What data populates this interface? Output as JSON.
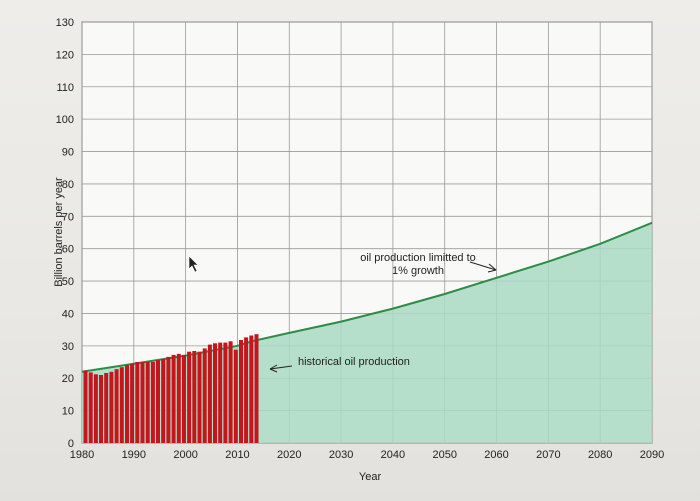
{
  "chart_data": {
    "type": "area",
    "ylabel": "Billion barrels per year",
    "xlabel": "Year",
    "xlim": [
      1980,
      2090
    ],
    "ylim": [
      0,
      130
    ],
    "x_ticks": [
      1980,
      1990,
      2000,
      2010,
      2020,
      2030,
      2040,
      2050,
      2060,
      2070,
      2080,
      2090
    ],
    "y_ticks": [
      0,
      10,
      20,
      30,
      40,
      50,
      60,
      70,
      80,
      90,
      100,
      110,
      120,
      130
    ],
    "grid": true,
    "historical": {
      "type": "bar",
      "color": "#c4161c",
      "x": [
        1980,
        1981,
        1982,
        1983,
        1984,
        1985,
        1986,
        1987,
        1988,
        1989,
        1990,
        1991,
        1992,
        1993,
        1994,
        1995,
        1996,
        1997,
        1998,
        1999,
        2000,
        2001,
        2002,
        2003,
        2004,
        2005,
        2006,
        2007,
        2008,
        2009,
        2010,
        2011,
        2012,
        2013
      ],
      "values": [
        22.4,
        21.8,
        21.2,
        21.0,
        21.6,
        22.0,
        22.8,
        23.4,
        24.0,
        24.5,
        25.0,
        25.0,
        25.1,
        25.0,
        25.6,
        26.0,
        26.6,
        27.2,
        27.5,
        27.2,
        28.2,
        28.4,
        28.2,
        29.2,
        30.4,
        30.8,
        31.0,
        31.0,
        31.4,
        28.8,
        31.8,
        32.6,
        33.2,
        33.6
      ]
    },
    "projection": {
      "type": "area",
      "color": "#a9dbc2",
      "line_color": "#2e8b47",
      "x": [
        1980,
        1990,
        2000,
        2010,
        2013,
        2020,
        2030,
        2040,
        2050,
        2060,
        2070,
        2080,
        2090
      ],
      "values": [
        22.0,
        24.5,
        27.0,
        30.0,
        31.5,
        34.0,
        37.5,
        41.5,
        46.0,
        51.0,
        56.0,
        61.5,
        68.0
      ]
    },
    "annotations": [
      {
        "lines": [
          "oil production limitted to",
          "1% growth"
        ]
      },
      {
        "lines": [
          "historical oil production"
        ]
      }
    ]
  }
}
